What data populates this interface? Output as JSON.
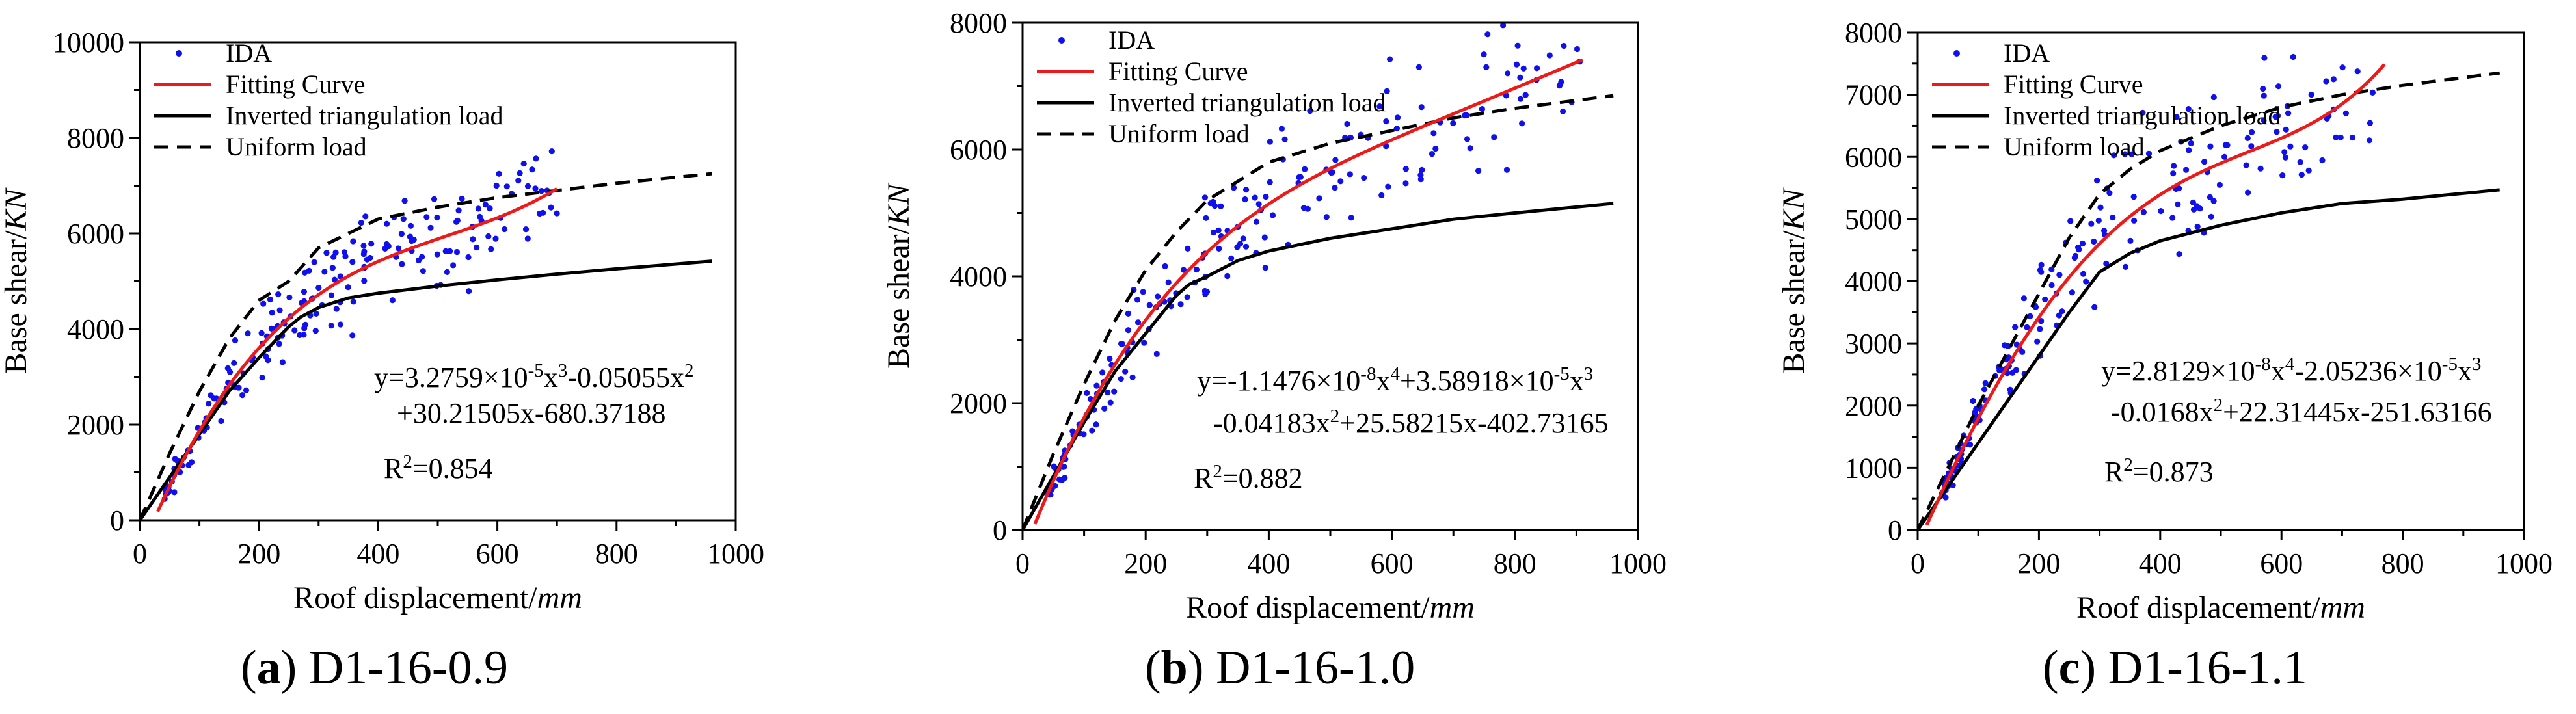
{
  "chart_data": [
    {
      "type": "scatter",
      "panel_label": "(a)",
      "title": "D1-16-0.9",
      "xlabel_main": "Roof displacement/",
      "xlabel_unit": "mm",
      "ylabel_main": "Base shear/",
      "ylabel_unit": "KN",
      "xlim": [
        0,
        1000
      ],
      "ylim": [
        0,
        10000
      ],
      "xticks": [
        0,
        200,
        400,
        600,
        800,
        1000
      ],
      "yticks": [
        0,
        2000,
        4000,
        6000,
        8000,
        10000
      ],
      "legend": [
        "IDA",
        "Fitting Curve",
        "Inverted triangulation load",
        "Uniform load"
      ],
      "legend_position": "top-left",
      "equation_lines": [
        [
          "y=3.2759×10",
          "-5",
          "x",
          "3",
          "-0.05055x",
          "2"
        ],
        [
          "+30.21505x-680.37188"
        ]
      ],
      "r2_label": "R",
      "r2_sup": "2",
      "r2_value": "=0.854",
      "fit": {
        "coeffs": [
          -680.37188,
          30.21505,
          -0.05055,
          3.2759e-05
        ],
        "x_range": [
          30,
          700
        ]
      },
      "inverted_triangulation": {
        "x": [
          0,
          50,
          100,
          150,
          200,
          250,
          270,
          300,
          350,
          400,
          500,
          600,
          700,
          800,
          960
        ],
        "y": [
          0,
          900,
          1800,
          2700,
          3400,
          4050,
          4250,
          4450,
          4650,
          4750,
          4900,
          5030,
          5150,
          5260,
          5420
        ]
      },
      "uniform": {
        "x": [
          0,
          50,
          100,
          150,
          200,
          250,
          300,
          350,
          400,
          500,
          600,
          700,
          800,
          960
        ],
        "y": [
          0,
          1400,
          2700,
          3800,
          4600,
          5000,
          5700,
          6000,
          6300,
          6550,
          6750,
          6900,
          7050,
          7250
        ]
      },
      "ida": {
        "x_range": [
          40,
          700
        ],
        "seed": 11,
        "n": 200
      }
    },
    {
      "type": "scatter",
      "panel_label": "(b)",
      "title": "D1-16-1.0",
      "xlabel_main": "Roof displacement/",
      "xlabel_unit": "mm",
      "ylabel_main": "Base shear/",
      "ylabel_unit": "KN",
      "xlim": [
        0,
        1000
      ],
      "ylim": [
        0,
        8000
      ],
      "xticks": [
        0,
        200,
        400,
        600,
        800,
        1000
      ],
      "yticks": [
        0,
        2000,
        4000,
        6000,
        8000
      ],
      "legend": [
        "IDA",
        "Fitting Curve",
        "Inverted triangulation load",
        "Uniform load"
      ],
      "legend_position": "top-left",
      "equation_lines": [
        [
          "y=-1.1476×10",
          "-8",
          "x",
          "4",
          "+3.58918×10",
          "-5",
          "x",
          "3"
        ],
        [
          "-0.04183x",
          "2",
          "+25.58215x-402.73165"
        ]
      ],
      "r2_label": "R",
      "r2_sup": "2",
      "r2_value": "=0.882",
      "fit": {
        "coeffs": [
          -402.73165,
          25.58215,
          -0.04183,
          3.58918e-05,
          -1.1476e-08
        ],
        "x_range": [
          20,
          910
        ]
      },
      "inverted_triangulation": {
        "x": [
          0,
          50,
          100,
          150,
          200,
          250,
          270,
          300,
          350,
          400,
          500,
          600,
          700,
          800,
          960
        ],
        "y": [
          0,
          850,
          1700,
          2500,
          3100,
          3700,
          3870,
          4000,
          4250,
          4400,
          4600,
          4750,
          4900,
          5000,
          5150
        ]
      },
      "uniform": {
        "x": [
          0,
          50,
          100,
          150,
          200,
          250,
          300,
          350,
          400,
          500,
          600,
          700,
          800,
          960
        ],
        "y": [
          0,
          1200,
          2300,
          3300,
          4100,
          4700,
          5200,
          5500,
          5800,
          6100,
          6300,
          6500,
          6650,
          6850
        ]
      },
      "ida": {
        "x_range": [
          40,
          910
        ],
        "seed": 23,
        "n": 200
      }
    },
    {
      "type": "scatter",
      "panel_label": "(c)",
      "title": "D1-16-1.1",
      "xlabel_main": "Roof displacement/",
      "xlabel_unit": "mm",
      "ylabel_main": "Base shear/",
      "ylabel_unit": "KN",
      "xlim": [
        0,
        1000
      ],
      "ylim": [
        0,
        8000
      ],
      "xticks": [
        0,
        200,
        400,
        600,
        800,
        1000
      ],
      "yticks": [
        0,
        1000,
        2000,
        3000,
        4000,
        5000,
        6000,
        7000,
        8000
      ],
      "legend": [
        "IDA",
        "Fitting Curve",
        "Inverted triangulation load",
        "Uniform load"
      ],
      "legend_position": "top-left",
      "equation_lines": [
        [
          "y=2.8129×10",
          "-8",
          "x",
          "4",
          "-2.05236×10",
          "-5",
          "x",
          "3"
        ],
        [
          "-0.0168x",
          "2",
          "+22.31445x-251.63166"
        ]
      ],
      "r2_label": "R",
      "r2_sup": "2",
      "r2_value": "=0.873",
      "fit": {
        "coeffs": [
          -251.63166,
          22.31445,
          -0.0168,
          -2.05236e-05,
          2.8129e-08
        ],
        "x_range": [
          15,
          770
        ]
      },
      "inverted_triangulation": {
        "x": [
          0,
          50,
          100,
          150,
          200,
          250,
          300,
          350,
          400,
          500,
          600,
          700,
          800,
          960
        ],
        "y": [
          0,
          700,
          1400,
          2100,
          2800,
          3500,
          4150,
          4450,
          4650,
          4900,
          5100,
          5250,
          5320,
          5470
        ]
      },
      "uniform": {
        "x": [
          0,
          50,
          100,
          150,
          200,
          250,
          300,
          350,
          400,
          500,
          600,
          700,
          800,
          960
        ],
        "y": [
          0,
          1000,
          2000,
          2900,
          3800,
          4700,
          5400,
          5800,
          6100,
          6500,
          6800,
          7000,
          7150,
          7350
        ]
      },
      "ida": {
        "x_range": [
          40,
          770
        ],
        "seed": 37,
        "n": 200
      }
    }
  ],
  "colors": {
    "ida": "#1010ee",
    "fit": "#ee1a1a",
    "inverted": "#000000",
    "uniform": "#000000",
    "axis": "#000000"
  }
}
